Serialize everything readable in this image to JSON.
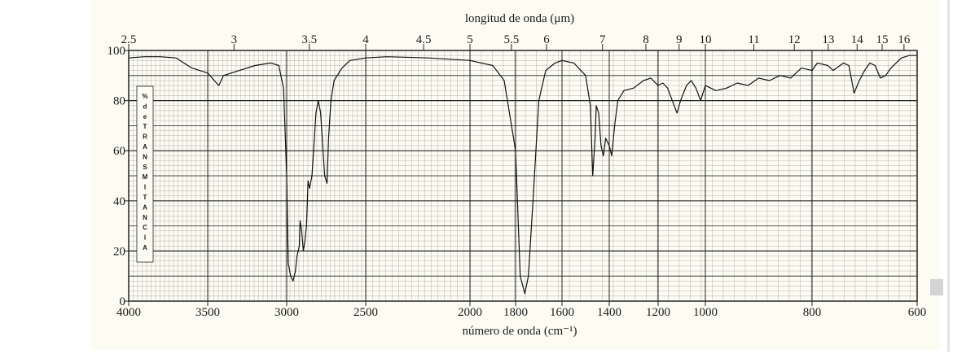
{
  "chart_data": {
    "type": "line",
    "top_axis": {
      "label": "longitud de onda (μm)",
      "tick_labels": [
        "2.5",
        "3",
        "3.5",
        "4",
        "4.5",
        "5",
        "5.5",
        "6",
        "7",
        "8",
        "9",
        "10",
        "11",
        "12",
        "13",
        "14",
        "15",
        "16"
      ],
      "tick_values_um": [
        2.5,
        3,
        3.5,
        4,
        4.5,
        5,
        5.5,
        6,
        7,
        8,
        9,
        10,
        11,
        12,
        13,
        14,
        15,
        16
      ]
    },
    "bottom_axis": {
      "label": "número de onda (cm⁻¹)",
      "tick_labels": [
        "4000",
        "3500",
        "3000",
        "2500",
        "2000",
        "1800",
        "1600",
        "1400",
        "1200",
        "1000",
        "800",
        "600"
      ],
      "tick_values": [
        4000,
        3500,
        3000,
        2500,
        2000,
        1800,
        1600,
        1400,
        1200,
        1000,
        800,
        600
      ]
    },
    "y_axis": {
      "label_letters": [
        "%",
        "d",
        "e",
        "T",
        "R",
        "A",
        "N",
        "S",
        "M",
        "I",
        "T",
        "A",
        "N",
        "C",
        "I",
        "A"
      ],
      "tick_labels": [
        "0",
        "20",
        "40",
        "60",
        "80",
        "100"
      ],
      "tick_values": [
        0,
        20,
        40,
        60,
        80,
        100
      ],
      "range": [
        0,
        100
      ]
    },
    "grid": true,
    "series": [
      {
        "points": [
          [
            4000,
            97
          ],
          [
            3900,
            97.5
          ],
          [
            3800,
            97.5
          ],
          [
            3700,
            97
          ],
          [
            3600,
            93
          ],
          [
            3500,
            91
          ],
          [
            3430,
            86
          ],
          [
            3400,
            90
          ],
          [
            3300,
            92
          ],
          [
            3200,
            94
          ],
          [
            3100,
            95
          ],
          [
            3050,
            94
          ],
          [
            3020,
            85
          ],
          [
            3000,
            50
          ],
          [
            2990,
            15
          ],
          [
            2975,
            10
          ],
          [
            2960,
            8
          ],
          [
            2945,
            12
          ],
          [
            2935,
            18
          ],
          [
            2920,
            22
          ],
          [
            2915,
            32
          ],
          [
            2905,
            28
          ],
          [
            2895,
            20
          ],
          [
            2885,
            24
          ],
          [
            2875,
            30
          ],
          [
            2865,
            48
          ],
          [
            2855,
            45
          ],
          [
            2840,
            50
          ],
          [
            2830,
            60
          ],
          [
            2815,
            75
          ],
          [
            2800,
            80
          ],
          [
            2785,
            75
          ],
          [
            2770,
            60
          ],
          [
            2760,
            50
          ],
          [
            2745,
            47
          ],
          [
            2735,
            65
          ],
          [
            2720,
            80
          ],
          [
            2700,
            88
          ],
          [
            2650,
            93
          ],
          [
            2600,
            96
          ],
          [
            2500,
            97
          ],
          [
            2400,
            97.5
          ],
          [
            2200,
            97
          ],
          [
            2000,
            96
          ],
          [
            1900,
            94
          ],
          [
            1850,
            88
          ],
          [
            1800,
            60
          ],
          [
            1780,
            10
          ],
          [
            1760,
            3
          ],
          [
            1745,
            10
          ],
          [
            1725,
            40
          ],
          [
            1700,
            80
          ],
          [
            1670,
            92
          ],
          [
            1630,
            95
          ],
          [
            1600,
            96
          ],
          [
            1550,
            95
          ],
          [
            1500,
            90
          ],
          [
            1480,
            78
          ],
          [
            1470,
            50
          ],
          [
            1460,
            65
          ],
          [
            1455,
            78
          ],
          [
            1445,
            75
          ],
          [
            1435,
            62
          ],
          [
            1425,
            58
          ],
          [
            1415,
            65
          ],
          [
            1400,
            62
          ],
          [
            1390,
            58
          ],
          [
            1378,
            70
          ],
          [
            1365,
            80
          ],
          [
            1340,
            84
          ],
          [
            1300,
            85
          ],
          [
            1260,
            88
          ],
          [
            1230,
            89
          ],
          [
            1200,
            86
          ],
          [
            1180,
            87
          ],
          [
            1160,
            85
          ],
          [
            1140,
            80
          ],
          [
            1120,
            75
          ],
          [
            1105,
            80
          ],
          [
            1080,
            86
          ],
          [
            1060,
            88
          ],
          [
            1040,
            85
          ],
          [
            1020,
            80
          ],
          [
            1000,
            86
          ],
          [
            980,
            84
          ],
          [
            960,
            85
          ],
          [
            940,
            87
          ],
          [
            920,
            86
          ],
          [
            900,
            89
          ],
          [
            880,
            88
          ],
          [
            860,
            90
          ],
          [
            840,
            89
          ],
          [
            820,
            93
          ],
          [
            800,
            92
          ],
          [
            790,
            95
          ],
          [
            770,
            94
          ],
          [
            760,
            92
          ],
          [
            740,
            95
          ],
          [
            730,
            94
          ],
          [
            720,
            83
          ],
          [
            710,
            88
          ],
          [
            700,
            92
          ],
          [
            690,
            95
          ],
          [
            680,
            94
          ],
          [
            670,
            89
          ],
          [
            660,
            90
          ],
          [
            650,
            93
          ],
          [
            640,
            95
          ],
          [
            630,
            97
          ],
          [
            615,
            98
          ],
          [
            600,
            98
          ]
        ]
      }
    ]
  }
}
